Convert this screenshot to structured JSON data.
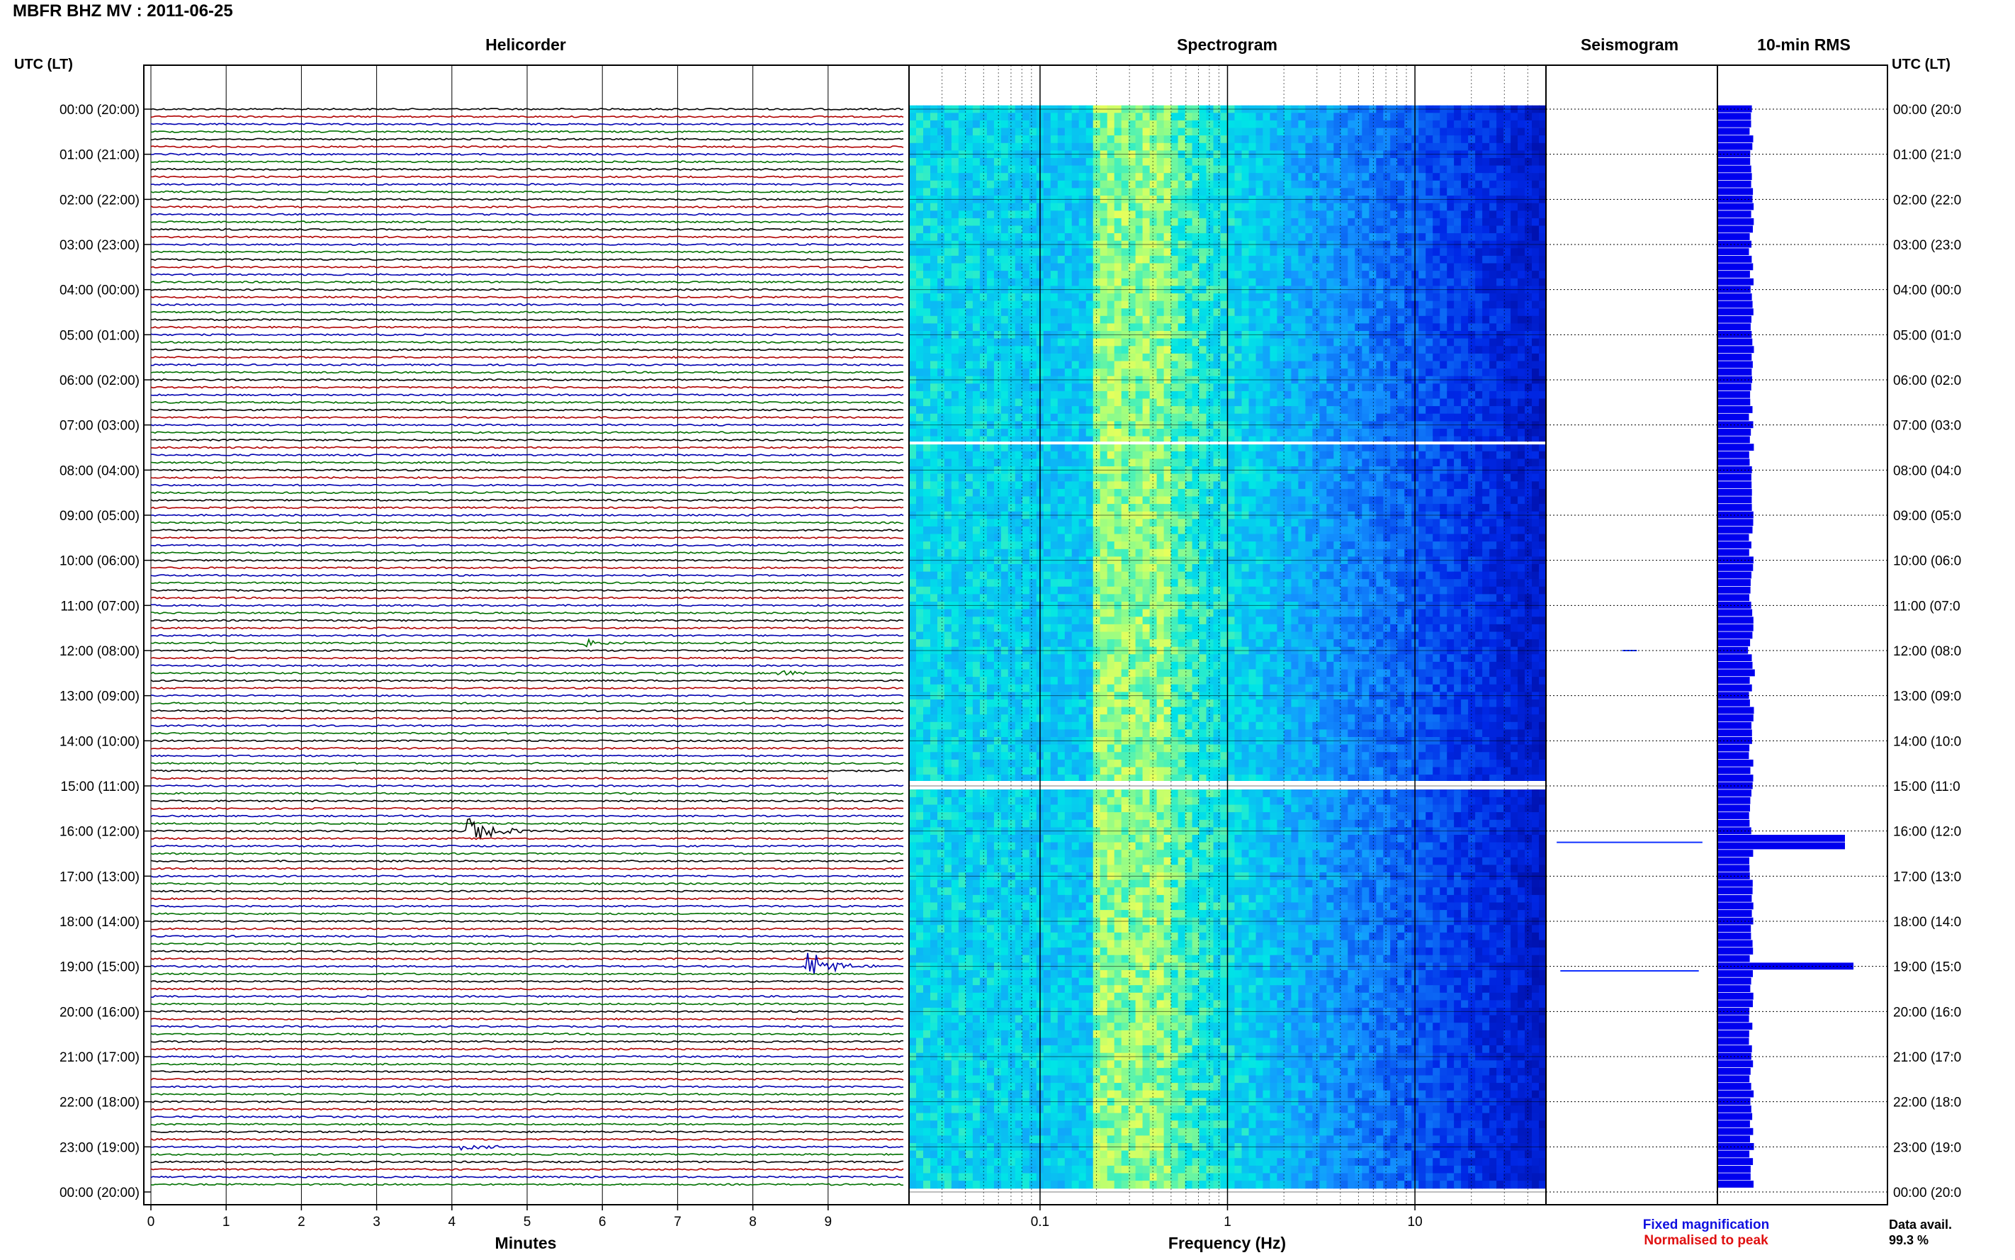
{
  "header": {
    "title": "MBFR BHZ MV : 2011-06-25"
  },
  "panels": {
    "helicorder_title": "Helicorder",
    "spectrogram_title": "Spectrogram",
    "seismogram_title": "Seismogram",
    "rms_title": "10-min RMS",
    "left_axis_header": "UTC (LT)",
    "right_axis_header": "UTC (LT)",
    "helicorder_xlabel": "Minutes",
    "spectrogram_xlabel": "Frequency (Hz)"
  },
  "legend": {
    "fixed": "Fixed magnification",
    "normalised": "Normalised to peak",
    "fixed_color": "#1010e0",
    "normalised_color": "#e01010"
  },
  "data_availability": {
    "label": "Data avail.",
    "value": "99.3 %"
  },
  "colors": {
    "trace_cycle": [
      "#000000",
      "#b00000",
      "#0000b0",
      "#007000"
    ],
    "rms_bar": "#0000ee",
    "seismogram_trace": "#1030ff",
    "gap": "#ffffff"
  },
  "chart_data": [
    {
      "type": "line",
      "name": "helicorder",
      "title": "Helicorder",
      "xlabel": "Minutes",
      "xlim": [
        0,
        10
      ],
      "x_ticks": [
        "0",
        "1",
        "2",
        "3",
        "4",
        "5",
        "6",
        "7",
        "8",
        "9"
      ],
      "rows_per_hour": 6,
      "row_minutes": 10,
      "y_tick_labels_left": [
        "00:00 (20:00)",
        "01:00 (21:00)",
        "02:00 (22:00)",
        "03:00 (23:00)",
        "04:00 (00:00)",
        "05:00 (01:00)",
        "06:00 (02:00)",
        "07:00 (03:00)",
        "08:00 (04:00)",
        "09:00 (05:00)",
        "10:00 (06:00)",
        "11:00 (07:00)",
        "12:00 (08:00)",
        "13:00 (09:00)",
        "14:00 (10:00)",
        "15:00 (11:00)",
        "16:00 (12:00)",
        "17:00 (13:00)",
        "18:00 (14:00)",
        "19:00 (15:00)",
        "20:00 (16:00)",
        "21:00 (17:00)",
        "22:00 (18:00)",
        "23:00 (19:00)",
        "00:00 (20:00)"
      ],
      "y_tick_labels_right": [
        "00:00 (20:0",
        "01:00 (21:0",
        "02:00 (22:0",
        "03:00 (23:0",
        "04:00 (00:0",
        "05:00 (01:0",
        "06:00 (02:0",
        "07:00 (03:0",
        "08:00 (04:0",
        "09:00 (05:0",
        "10:00 (06:0",
        "11:00 (07:0",
        "12:00 (08:0",
        "13:00 (09:0",
        "14:00 (10:0",
        "15:00 (11:0",
        "16:00 (12:0",
        "17:00 (13:0",
        "18:00 (14:0",
        "19:00 (15:0",
        "20:00 (16:0",
        "21:00 (17:0",
        "22:00 (18:0",
        "23:00 (19:0",
        "00:00 (20:0"
      ],
      "events": [
        {
          "hour": 15.95,
          "minute": 4.3,
          "amplitude": 3.2
        },
        {
          "hour": 18.95,
          "minute": 8.8,
          "amplitude": 3.4
        },
        {
          "hour": 11.85,
          "minute": 5.8,
          "amplitude": 1.0
        },
        {
          "hour": 12.45,
          "minute": 8.4,
          "amplitude": 0.8
        },
        {
          "hour": 22.95,
          "minute": 4.2,
          "amplitude": 0.6
        }
      ],
      "gaps": [
        {
          "hour": 14.8,
          "minute_start": 9.0,
          "minute_end": 10.0
        }
      ]
    },
    {
      "type": "heatmap",
      "name": "spectrogram",
      "title": "Spectrogram",
      "xlabel": "Frequency (Hz)",
      "x_scale": "log",
      "xlim": [
        0.02,
        50
      ],
      "x_tick_labels": [
        "0.1",
        "1",
        "10"
      ],
      "peak_band_hz": [
        0.2,
        0.5
      ],
      "gaps_hours": [
        7.4,
        15.0
      ]
    },
    {
      "type": "line",
      "name": "seismogram",
      "title": "Seismogram",
      "spikes": [
        {
          "hour": 16.25,
          "relative_amplitude": 1.0
        },
        {
          "hour": 19.1,
          "relative_amplitude": 0.95
        },
        {
          "hour": 12.0,
          "relative_amplitude": 0.1
        }
      ],
      "gap_hour": 15.0
    },
    {
      "type": "bar",
      "name": "rms",
      "title": "10-min RMS",
      "interval_minutes": 10,
      "baseline_relative": 0.2,
      "peaks": [
        {
          "hour": 16.25,
          "relative_value": 0.75
        },
        {
          "hour": 19.05,
          "relative_value": 0.8
        },
        {
          "hour": 12.5,
          "relative_value": 0.22
        },
        {
          "hour": 12.0,
          "relative_value": 0.18
        }
      ]
    }
  ]
}
